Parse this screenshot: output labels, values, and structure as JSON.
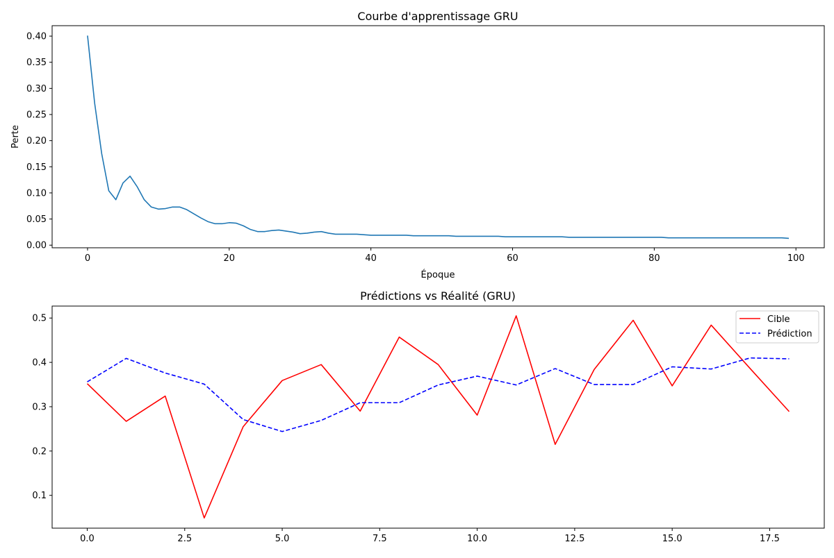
{
  "figure": {
    "background": "#ffffff"
  },
  "chart_data": [
    {
      "type": "line",
      "title": "Courbe d'apprentissage GRU",
      "xlabel": "Époque",
      "ylabel": "Perte",
      "xlim": [
        -5,
        104
      ],
      "ylim": [
        -0.005,
        0.42
      ],
      "xticks": [
        0,
        20,
        40,
        60,
        80,
        100
      ],
      "xtick_labels": [
        "0",
        "20",
        "40",
        "60",
        "80",
        "100"
      ],
      "yticks": [
        0.0,
        0.05,
        0.1,
        0.15,
        0.2,
        0.25,
        0.3,
        0.35,
        0.4
      ],
      "ytick_labels": [
        "0.00",
        "0.05",
        "0.10",
        "0.15",
        "0.20",
        "0.25",
        "0.30",
        "0.35",
        "0.40"
      ],
      "grid": false,
      "series": [
        {
          "color": "#1f77b4",
          "style": "solid",
          "x": [
            0,
            1,
            2,
            3,
            4,
            5,
            6,
            7,
            8,
            9,
            10,
            11,
            12,
            13,
            14,
            15,
            16,
            17,
            18,
            19,
            20,
            21,
            22,
            23,
            24,
            25,
            26,
            27,
            28,
            29,
            30,
            31,
            32,
            33,
            34,
            35,
            36,
            37,
            38,
            39,
            40,
            41,
            42,
            43,
            44,
            45,
            46,
            47,
            48,
            49,
            50,
            51,
            52,
            53,
            54,
            55,
            56,
            57,
            58,
            59,
            60,
            61,
            62,
            63,
            64,
            65,
            66,
            67,
            68,
            69,
            70,
            71,
            72,
            73,
            74,
            75,
            76,
            77,
            78,
            79,
            80,
            81,
            82,
            83,
            84,
            85,
            86,
            87,
            88,
            89,
            90,
            91,
            92,
            93,
            94,
            95,
            96,
            97,
            98,
            99
          ],
          "values": [
            0.401,
            0.272,
            0.175,
            0.104,
            0.087,
            0.119,
            0.132,
            0.112,
            0.087,
            0.073,
            0.069,
            0.07,
            0.073,
            0.073,
            0.068,
            0.06,
            0.052,
            0.045,
            0.041,
            0.041,
            0.043,
            0.042,
            0.037,
            0.03,
            0.026,
            0.026,
            0.028,
            0.029,
            0.027,
            0.025,
            0.022,
            0.023,
            0.025,
            0.026,
            0.023,
            0.021,
            0.021,
            0.021,
            0.021,
            0.02,
            0.019,
            0.019,
            0.019,
            0.019,
            0.019,
            0.019,
            0.018,
            0.018,
            0.018,
            0.018,
            0.018,
            0.018,
            0.017,
            0.017,
            0.017,
            0.017,
            0.017,
            0.017,
            0.017,
            0.016,
            0.016,
            0.016,
            0.016,
            0.016,
            0.016,
            0.016,
            0.016,
            0.016,
            0.015,
            0.015,
            0.015,
            0.015,
            0.015,
            0.015,
            0.015,
            0.015,
            0.015,
            0.015,
            0.015,
            0.015,
            0.015,
            0.015,
            0.014,
            0.014,
            0.014,
            0.014,
            0.014,
            0.014,
            0.014,
            0.014,
            0.014,
            0.014,
            0.014,
            0.014,
            0.014,
            0.014,
            0.014,
            0.014,
            0.014,
            0.013
          ]
        }
      ]
    },
    {
      "type": "line",
      "title": "Prédictions vs Réalité (GRU)",
      "xlabel": "",
      "ylabel": "",
      "xlim": [
        -0.9,
        18.9
      ],
      "ylim": [
        0.026,
        0.527
      ],
      "xticks": [
        0,
        2.5,
        5,
        7.5,
        10,
        12.5,
        15,
        17.5
      ],
      "xtick_labels": [
        "0.0",
        "2.5",
        "5.0",
        "7.5",
        "10.0",
        "12.5",
        "15.0",
        "17.5"
      ],
      "yticks": [
        0.1,
        0.2,
        0.3,
        0.4,
        0.5
      ],
      "ytick_labels": [
        "0.1",
        "0.2",
        "0.3",
        "0.4",
        "0.5"
      ],
      "grid": false,
      "legend_position": "top-right",
      "series": [
        {
          "name": "Cible",
          "color": "#ff0000",
          "style": "solid",
          "x": [
            0,
            1,
            2,
            3,
            4,
            5,
            6,
            7,
            8,
            9,
            10,
            11,
            12,
            13,
            14,
            15,
            16,
            17,
            18
          ],
          "values": [
            0.352,
            0.267,
            0.324,
            0.049,
            0.255,
            0.359,
            0.395,
            0.29,
            0.457,
            0.395,
            0.281,
            0.505,
            0.215,
            0.384,
            0.495,
            0.347,
            0.484,
            0.386,
            0.289
          ]
        },
        {
          "name": "Prédiction",
          "color": "#0000ff",
          "style": "dashed",
          "x": [
            0,
            1,
            2,
            3,
            4,
            5,
            6,
            7,
            8,
            9,
            10,
            11,
            12,
            13,
            14,
            15,
            16,
            17,
            18
          ],
          "values": [
            0.356,
            0.409,
            0.376,
            0.351,
            0.271,
            0.244,
            0.269,
            0.309,
            0.309,
            0.349,
            0.369,
            0.349,
            0.386,
            0.35,
            0.35,
            0.39,
            0.385,
            0.41,
            0.408
          ]
        }
      ]
    }
  ]
}
